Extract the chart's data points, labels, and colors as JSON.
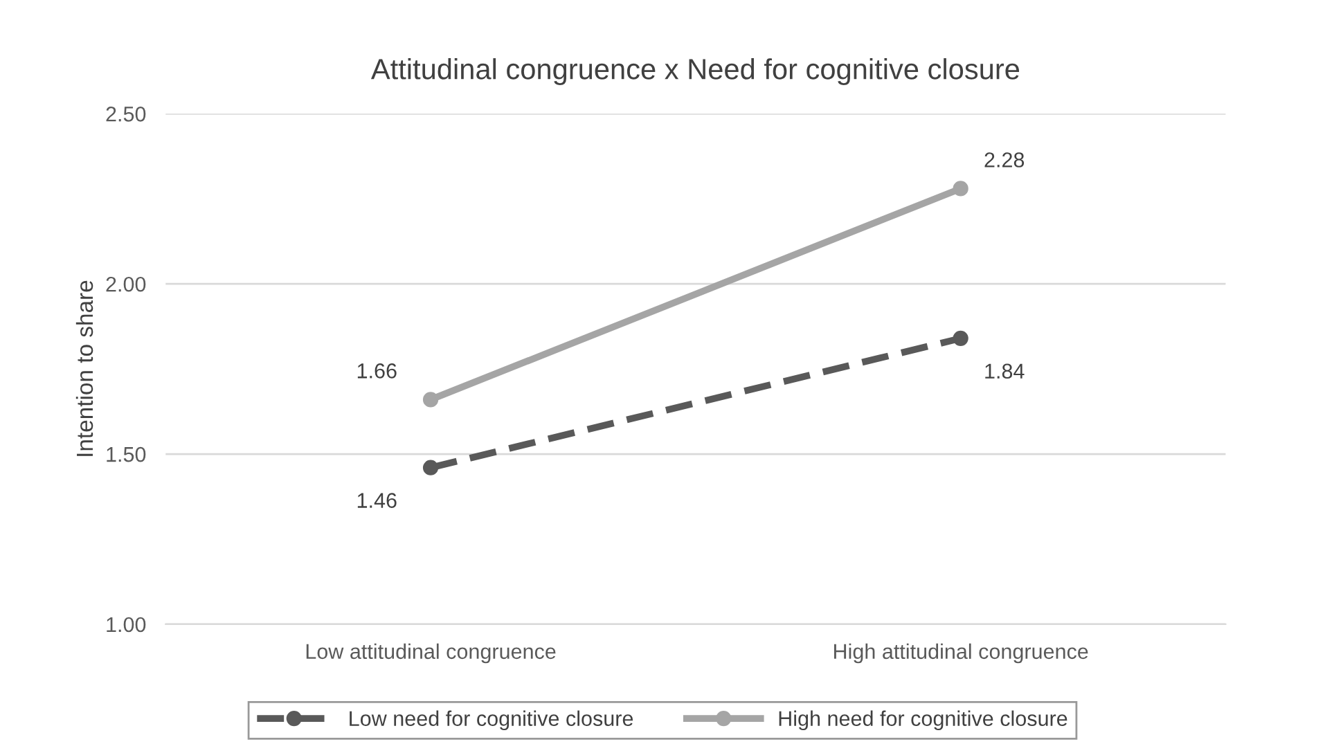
{
  "chart_data": {
    "type": "line",
    "title": "Attitudinal congruence x Need for cognitive closure",
    "ylabel": "Intention to share",
    "categories": [
      "Low attitudinal congruence",
      "High attitudinal congruence"
    ],
    "series": [
      {
        "name": "Low need for cognitive closure",
        "color": "#595959",
        "values": [
          1.46,
          1.84
        ],
        "line_style": "dashed"
      },
      {
        "name": "High need for cognitive closure",
        "color": "#a5a5a5",
        "values": [
          1.66,
          2.28
        ],
        "line_style": "solid"
      }
    ],
    "ylim": [
      1.0,
      2.5
    ],
    "yticks": [
      {
        "value": 1.0,
        "label": "1.00"
      },
      {
        "value": 1.5,
        "label": "1.50"
      },
      {
        "value": 2.0,
        "label": "2.00"
      },
      {
        "value": 2.5,
        "label": "2.50"
      }
    ],
    "grid": "y",
    "legend": "bottom",
    "marker": "circle",
    "data_labels": true
  }
}
